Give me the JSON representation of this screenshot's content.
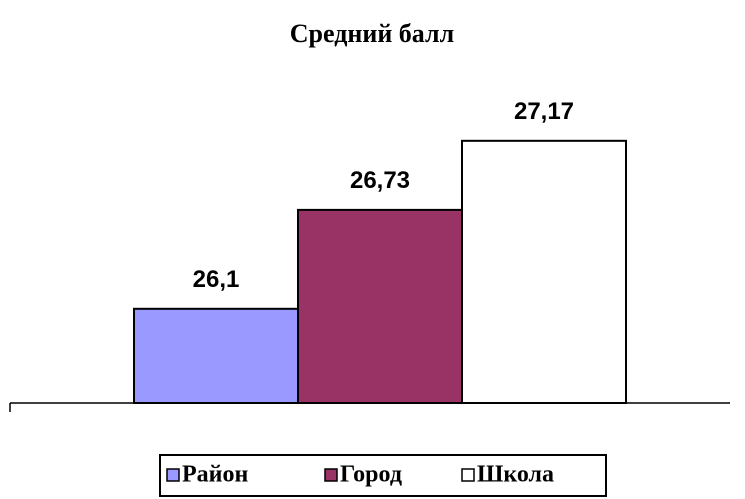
{
  "chart_data": {
    "type": "bar",
    "title": "Средний балл",
    "categories": [
      null
    ],
    "series": [
      {
        "name": "Район",
        "color": "#9999ff",
        "values": [
          26.1
        ],
        "value_labels": [
          "26,1"
        ]
      },
      {
        "name": "Город",
        "color": "#993366",
        "values": [
          26.73
        ],
        "value_labels": [
          "26,73"
        ]
      },
      {
        "name": "Школа",
        "color": "#ffffff",
        "values": [
          27.17
        ],
        "value_labels": [
          "27,17"
        ]
      }
    ],
    "ylim": [
      25.5,
      27.5
    ],
    "legend": "bottom"
  }
}
